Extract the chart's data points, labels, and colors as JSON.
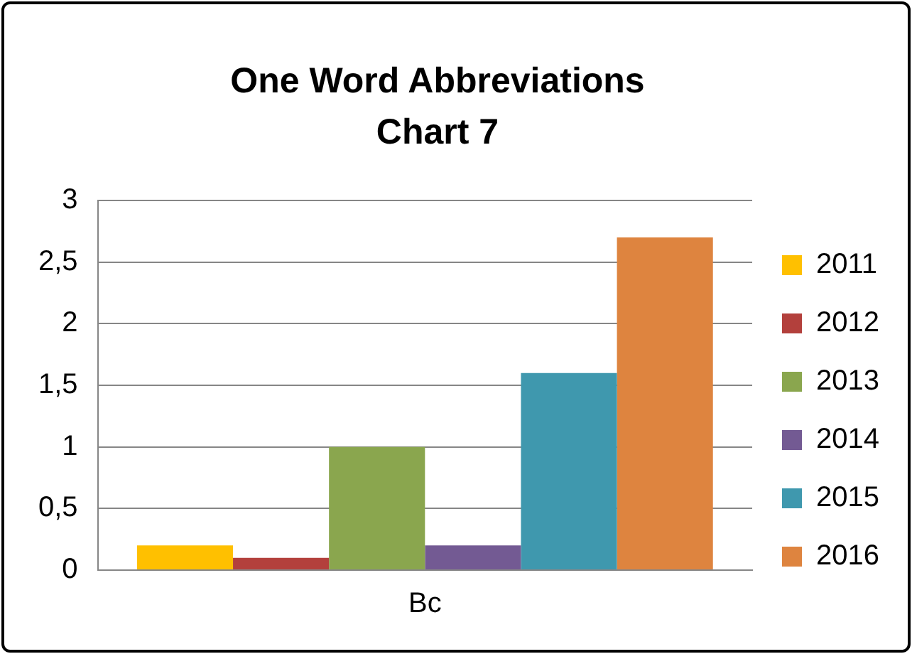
{
  "chart_data": {
    "type": "bar",
    "title": "One Word Abbreviations Chart 7",
    "categories": [
      "Bc"
    ],
    "series": [
      {
        "name": "2011",
        "color": "#ffc000",
        "values": [
          0.2
        ]
      },
      {
        "name": "2012",
        "color": "#b3403c",
        "values": [
          0.1
        ]
      },
      {
        "name": "2013",
        "color": "#8aa64e",
        "values": [
          1.0
        ]
      },
      {
        "name": "2014",
        "color": "#735a93",
        "values": [
          0.2
        ]
      },
      {
        "name": "2015",
        "color": "#3f98ae",
        "values": [
          1.6
        ]
      },
      {
        "name": "2016",
        "color": "#de843f",
        "values": [
          2.7
        ]
      }
    ],
    "ylim": [
      0,
      3
    ],
    "yticks": [
      0,
      {
        "value": 0.5,
        "label": "0,5"
      },
      1,
      {
        "value": 1.5,
        "label": "1,5"
      },
      2,
      {
        "value": 2.5,
        "label": "2,5"
      },
      3
    ],
    "grid": "y",
    "legend": "right"
  }
}
